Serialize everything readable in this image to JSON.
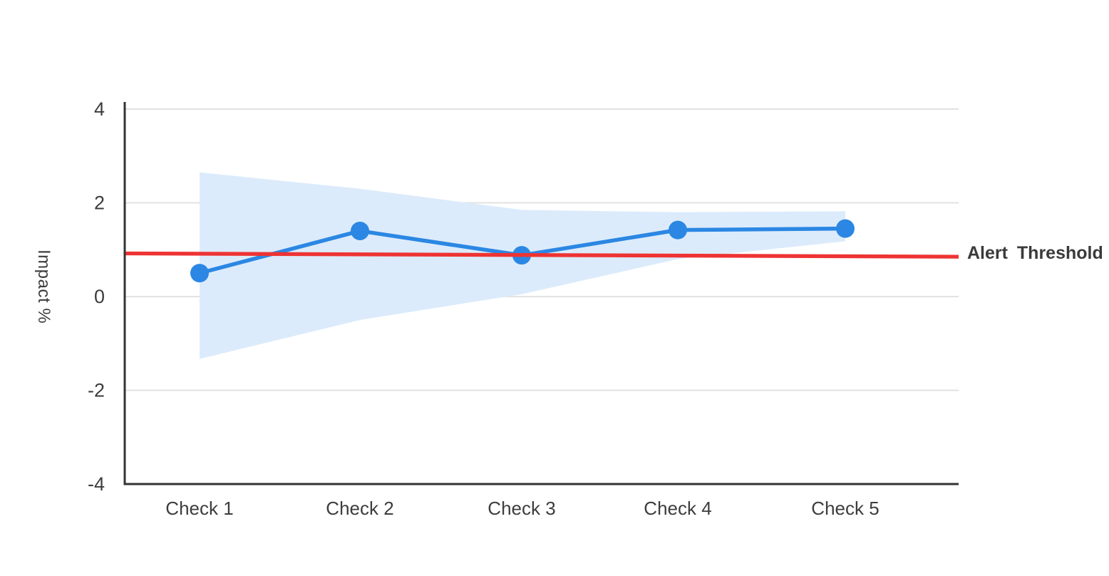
{
  "chart_data": {
    "type": "line",
    "categories": [
      "Check 1",
      "Check 2",
      "Check 3",
      "Check 4",
      "Check 5"
    ],
    "values": [
      0.5,
      1.4,
      0.88,
      1.42,
      1.45
    ],
    "band_upper": [
      2.65,
      2.3,
      1.85,
      1.8,
      1.82
    ],
    "band_lower": [
      -1.33,
      -0.5,
      0.05,
      0.8,
      1.18
    ],
    "threshold": {
      "label": "Alert Threshold",
      "start": 0.92,
      "end": 0.85
    },
    "ylabel": "Impact %",
    "ylim": [
      -4,
      4
    ],
    "yticks": [
      4,
      2,
      0,
      -2,
      -4
    ],
    "grid": "horizontal",
    "legend": "none",
    "colors": {
      "line": "#2b87e3",
      "marker": "#2b87e3",
      "band": "#dcebfb",
      "threshold": "#ee3333",
      "axis": "#333333",
      "gridline": "#e2e2e2",
      "text": "#3d3d3d",
      "background": "#ffffff"
    }
  }
}
